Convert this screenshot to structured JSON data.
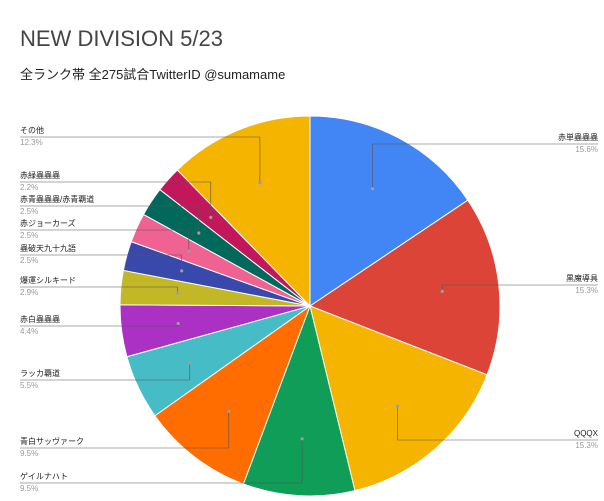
{
  "chart_data": {
    "type": "pie",
    "title": "NEW DIVISION 5/23",
    "subtitle": "全ランク帯 全275試合TwitterID @sumamame",
    "slices": [
      {
        "label": "赤単蟲蟲蟲",
        "percent_label": "15.6%",
        "value": 15.6,
        "color": "#4285f4",
        "side": "right"
      },
      {
        "label": "黒魔導具",
        "percent_label": "15.3%",
        "value": 15.3,
        "color": "#db4437",
        "side": "right"
      },
      {
        "label": "QQQX",
        "percent_label": "15.3%",
        "value": 15.3,
        "color": "#f4b400",
        "side": "right"
      },
      {
        "label": "ゲイルナハト",
        "percent_label": "9.5%",
        "value": 9.5,
        "color": "#0f9d58",
        "side": "left"
      },
      {
        "label": "青白サッヴァーク",
        "percent_label": "9.5%",
        "value": 9.5,
        "color": "#ff6d00",
        "side": "left"
      },
      {
        "label": "ラッカ覇道",
        "percent_label": "5.5%",
        "value": 5.5,
        "color": "#46bdc6",
        "side": "left"
      },
      {
        "label": "赤白蟲蟲蟲",
        "percent_label": "4.4%",
        "value": 4.4,
        "color": "#ab30c4",
        "side": "left"
      },
      {
        "label": "爆運シルキード",
        "percent_label": "2.9%",
        "value": 2.9,
        "color": "#c2b724",
        "side": "left"
      },
      {
        "label": "蟲破天九十九語",
        "percent_label": "2.5%",
        "value": 2.5,
        "color": "#3949ab",
        "side": "left"
      },
      {
        "label": "赤ジョーカーズ",
        "percent_label": "2.5%",
        "value": 2.5,
        "color": "#f06292",
        "side": "left"
      },
      {
        "label": "赤青蟲蟲蟲/赤青覇道",
        "percent_label": "2.5%",
        "value": 2.5,
        "color": "#00695c",
        "side": "left"
      },
      {
        "label": "赤緑蟲蟲蟲",
        "percent_label": "2.2%",
        "value": 2.2,
        "color": "#c2185b",
        "side": "left"
      },
      {
        "label": "その他",
        "percent_label": "12.3%",
        "value": 12.3,
        "color": "#f4b400",
        "side": "left"
      }
    ]
  }
}
